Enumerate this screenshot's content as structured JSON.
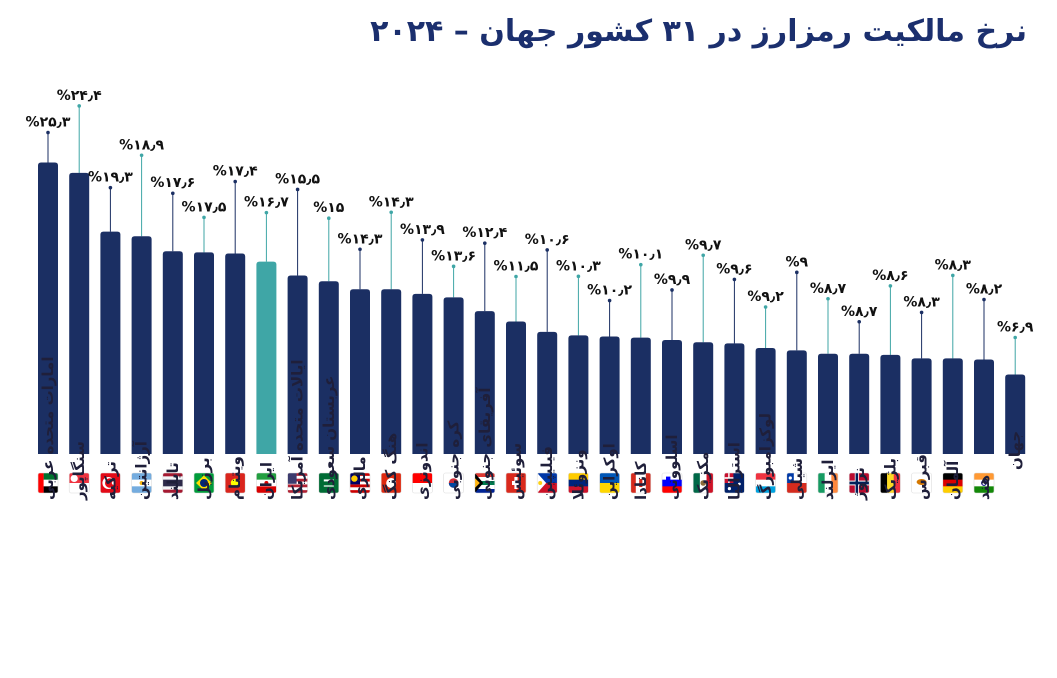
{
  "title": "نرخ مالکیت رمزارز در ۳۱ کشور جهان – ۲۰۲۴",
  "colors": {
    "bar": "#1b2f63",
    "highlight": "#3fa6a6",
    "stem_dark": "#1b2f63",
    "stem_teal": "#3fa6a6"
  },
  "chart_data": {
    "type": "bar",
    "title": "نرخ مالکیت رمزارز در ۳۱ کشور جهان – ۲۰۲۴",
    "xlabel": "",
    "ylabel": "",
    "ylim": [
      0,
      27
    ],
    "grid": false,
    "legend": "none",
    "highlight_index": 7,
    "categories": [
      "امارات متحده عربی",
      "سنگاپور",
      "ترکیه",
      "آرژانتین",
      "تایلند",
      "برزیل",
      "ویتنام",
      "ایران",
      "ایالات متحده آمریکا",
      "عربستان سعودی",
      "مالزی",
      "هنگ کنگ",
      "اندونزی",
      "کره جنوبی",
      "آفریقای جنوبی",
      "سوئیس",
      "فیلیپین",
      "ونزوئلا",
      "اوکراین",
      "کانادا",
      "اسلوونی",
      "مکزیک",
      "استرالیا",
      "لوکزامبورگ",
      "شیلی",
      "ایرلند",
      "نروژ",
      "بلژیک",
      "قبرس",
      "آلمان",
      "هند",
      "جهان"
    ],
    "values": [
      25.3,
      24.4,
      19.3,
      18.9,
      17.6,
      17.5,
      17.4,
      16.7,
      15.5,
      15.0,
      14.3,
      14.3,
      13.9,
      13.6,
      12.4,
      11.5,
      10.6,
      10.3,
      10.2,
      10.1,
      9.9,
      9.7,
      9.6,
      9.2,
      9.0,
      8.7,
      8.7,
      8.6,
      8.3,
      8.3,
      8.2,
      6.9
    ],
    "value_labels": [
      "%۲۵٫۳",
      "%۲۴٫۴",
      "%۱۹٫۳",
      "%۱۸٫۹",
      "%۱۷٫۶",
      "%۱۷٫۵",
      "%۱۷٫۴",
      "%۱۶٫۷",
      "%۱۵٫۵",
      "%۱۵",
      "%۱۴٫۳",
      "%۱۴٫۳",
      "%۱۳٫۹",
      "%۱۳٫۶",
      "%۱۲٫۴",
      "%۱۱٫۵",
      "%۱۰٫۶",
      "%۱۰٫۳",
      "%۱۰٫۲",
      "%۱۰٫۱",
      "%۹٫۹",
      "%۹٫۷",
      "%۹٫۶",
      "%۹٫۲",
      "%۹",
      "%۸٫۷",
      "%۸٫۷",
      "%۸٫۶",
      "%۸٫۳",
      "%۸٫۳",
      "%۸٫۲",
      "%۶٫۹"
    ],
    "flags": [
      "ae",
      "sg",
      "tr",
      "ar",
      "th",
      "br",
      "vn",
      "ir",
      "us",
      "sa",
      "my",
      "hk",
      "id",
      "kr",
      "za",
      "ch",
      "ph",
      "ve",
      "ua",
      "ca",
      "si",
      "mx",
      "au",
      "lu",
      "cl",
      "ie",
      "no",
      "be",
      "cy",
      "de",
      "in",
      ""
    ]
  }
}
